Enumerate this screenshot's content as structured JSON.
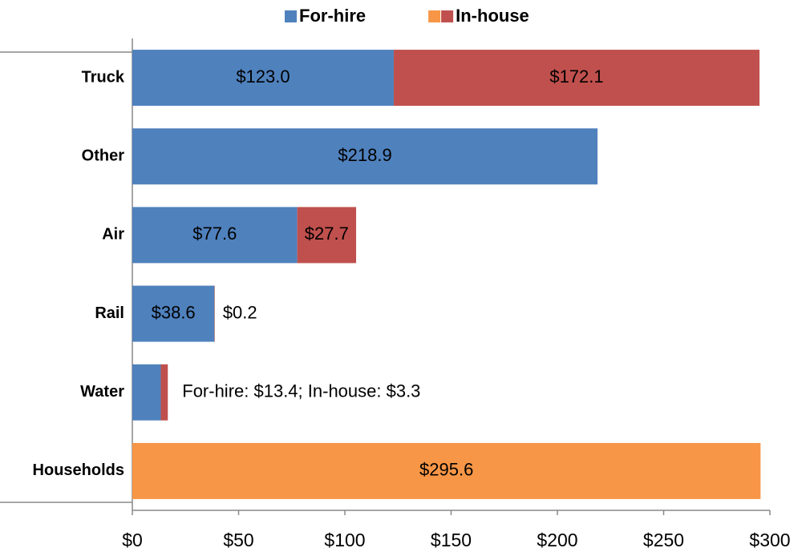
{
  "chart_data": {
    "type": "stacked-bar-horizontal",
    "categories": [
      "Truck",
      "Other",
      "Air",
      "Rail",
      "Water",
      "Households"
    ],
    "series": [
      {
        "name": "For-hire",
        "color": "#4f81bd",
        "values": [
          123.0,
          218.9,
          77.6,
          38.6,
          13.4,
          null
        ],
        "value_labels": [
          "$123.0",
          "$218.9",
          "$77.6",
          "$38.6",
          null,
          null
        ]
      },
      {
        "name": "In-house",
        "color": "#c0504d",
        "legend_colors": [
          "#f79646",
          "#c0504d"
        ],
        "point_colors": [
          "#c0504d",
          "#c0504d",
          "#c0504d",
          "#c0504d",
          "#c0504d",
          "#f79646"
        ],
        "values": [
          172.1,
          null,
          27.7,
          0.2,
          3.3,
          295.6
        ],
        "value_labels": [
          "$172.1",
          null,
          "$27.7",
          "$0.2",
          null,
          "$295.6"
        ]
      }
    ],
    "annotation": "For-hire: $13.4; In-house: $3.3",
    "xlim": [
      0,
      300
    ],
    "xticks": [
      {
        "value": 0,
        "label": "$0"
      },
      {
        "value": 50,
        "label": "$50"
      },
      {
        "value": 100,
        "label": "$100"
      },
      {
        "value": 150,
        "label": "$150"
      },
      {
        "value": 200,
        "label": "$200"
      },
      {
        "value": 250,
        "label": "$250"
      },
      {
        "value": 300,
        "label": "$300"
      }
    ],
    "grid": false,
    "legend": "top"
  }
}
